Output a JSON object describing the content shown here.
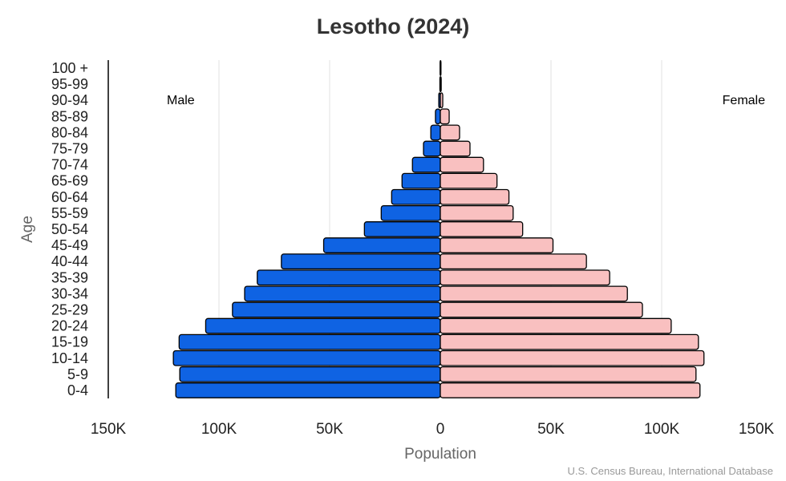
{
  "chart_data": {
    "type": "bar",
    "orientation": "horizontal-pyramid",
    "title": "Lesotho (2024)",
    "xlabel": "Population",
    "ylabel": "Age",
    "source": "U.S. Census Bureau, International Database",
    "xlim": [
      -150000,
      150000
    ],
    "x_ticks": [
      "150K",
      "100K",
      "50K",
      "0",
      "50K",
      "100K",
      "150K"
    ],
    "grid": "vertical",
    "categories": [
      "0-4",
      "5-9",
      "10-14",
      "15-19",
      "20-24",
      "25-29",
      "30-34",
      "35-39",
      "40-44",
      "45-49",
      "50-54",
      "55-59",
      "60-64",
      "65-69",
      "70-74",
      "75-79",
      "80-84",
      "85-89",
      "90-94",
      "95-99",
      "100 +"
    ],
    "series": [
      {
        "name": "Male",
        "color": "#0f63e3",
        "side": "left",
        "values": [
          119500,
          117700,
          120600,
          118000,
          106000,
          93900,
          88400,
          82700,
          71800,
          52700,
          34300,
          26700,
          22000,
          17300,
          12600,
          7600,
          4300,
          2200,
          700,
          200,
          100
        ]
      },
      {
        "name": "Female",
        "color": "#f9c0c0",
        "side": "right",
        "values": [
          117300,
          115500,
          119100,
          116600,
          104300,
          91300,
          84500,
          76500,
          66000,
          50900,
          37200,
          32900,
          31000,
          25600,
          19500,
          13400,
          8700,
          4000,
          1100,
          400,
          200
        ]
      }
    ]
  }
}
